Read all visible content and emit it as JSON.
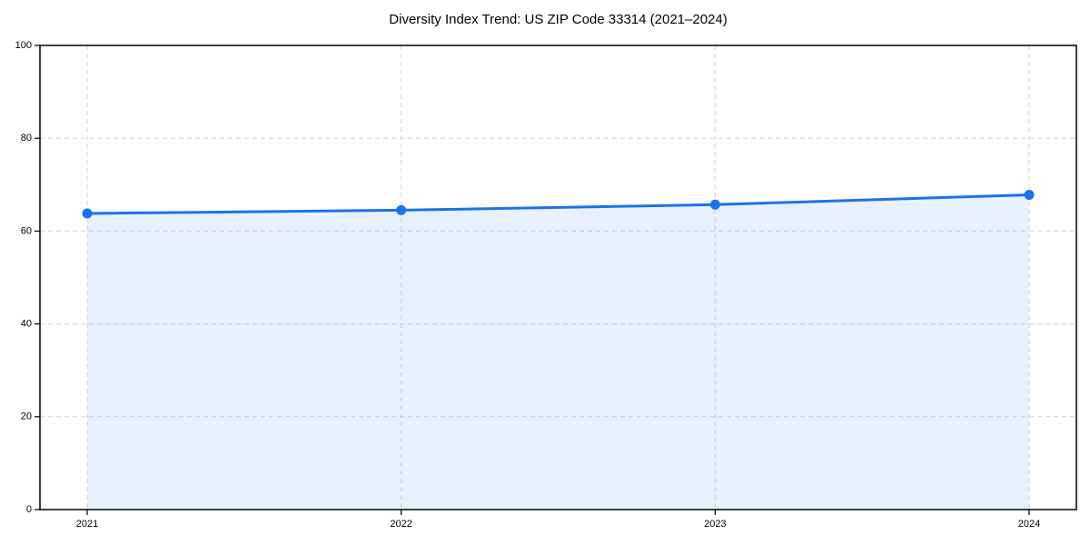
{
  "chart_data": {
    "type": "area",
    "title": "Diversity Index Trend: US ZIP Code 33314 (2021–2024)",
    "x": [
      2021,
      2022,
      2023,
      2024
    ],
    "series": [
      {
        "name": "Diversity Index",
        "values": [
          63.8,
          64.5,
          65.7,
          67.8
        ]
      }
    ],
    "xlabel": "",
    "ylabel": "",
    "ylim": [
      0,
      100
    ],
    "yticks": [
      0,
      20,
      40,
      60,
      80,
      100
    ],
    "grid": "dashed",
    "legend": "none",
    "colors": {
      "line": "#1a73e8",
      "marker": "#1a73e8",
      "fill": "#1a73e8",
      "fill_opacity": 0.1,
      "grid": "#d4d4d4",
      "spine": "#000000",
      "tick_text": "#000000",
      "background": "#ffffff"
    }
  }
}
